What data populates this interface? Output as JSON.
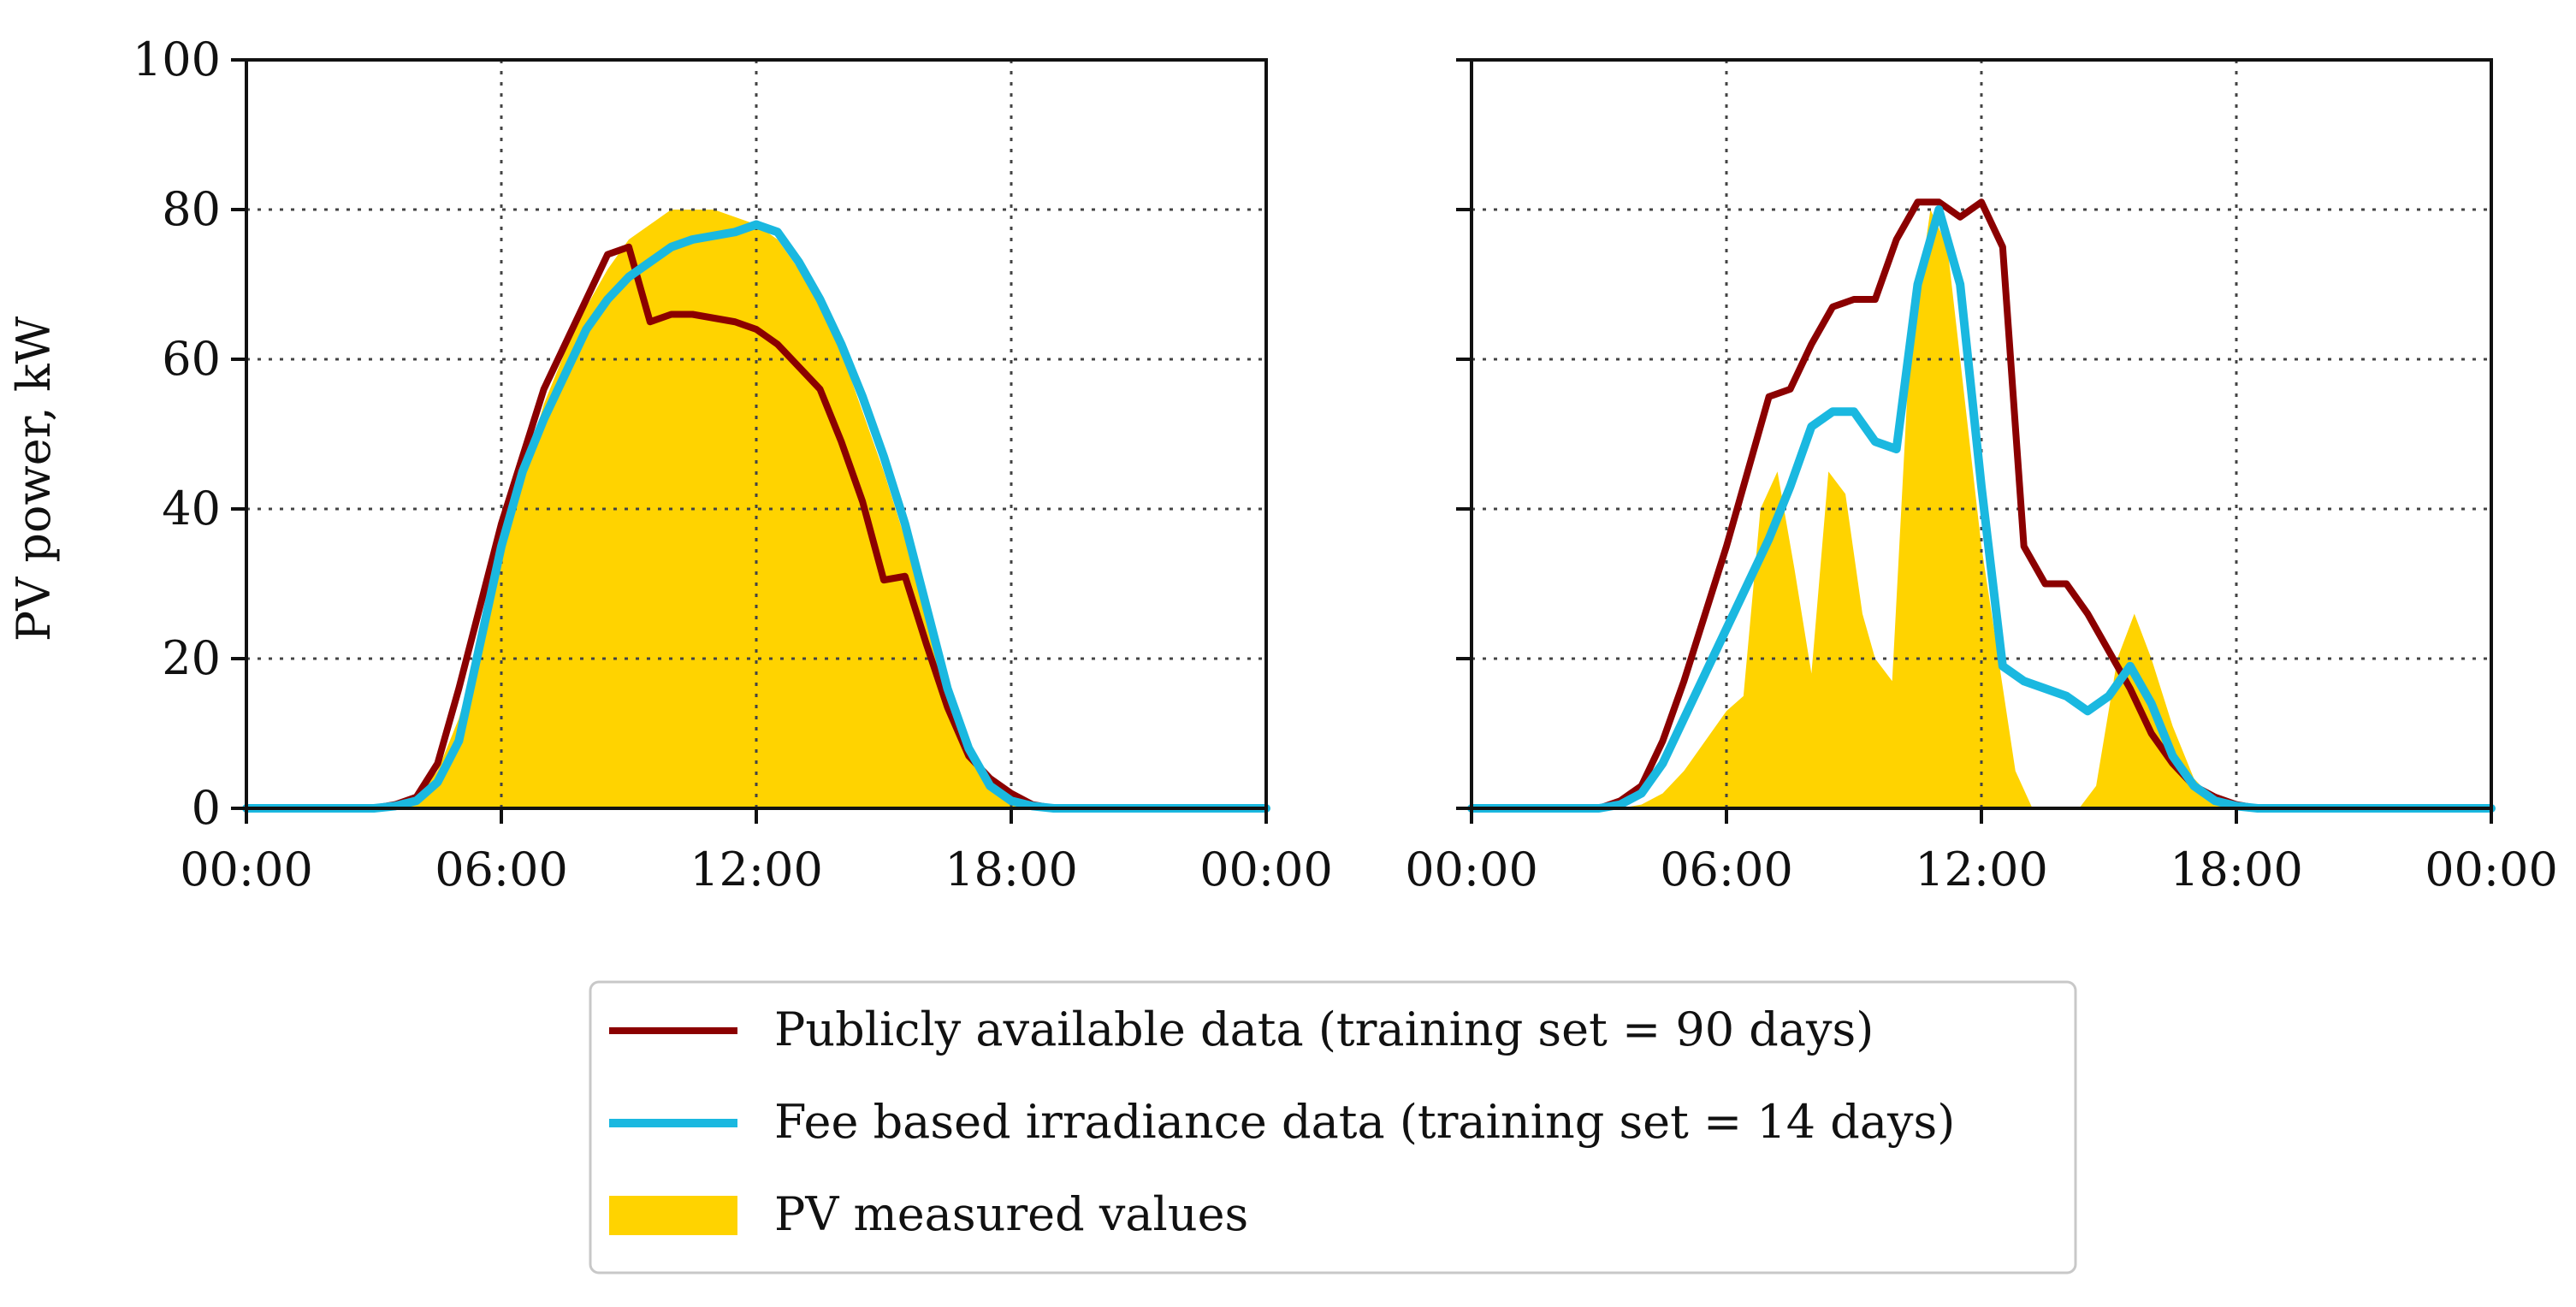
{
  "chart_data": [
    {
      "type": "area",
      "ylabel": "PV power, kW",
      "ylim": [
        0,
        100
      ],
      "yticks": [
        "0",
        "20",
        "40",
        "60",
        "80",
        "100"
      ],
      "xlim": [
        0,
        24
      ],
      "xticks": [
        "00:00",
        "06:00",
        "12:00",
        "18:00",
        "00:00"
      ],
      "grid": true,
      "series": [
        {
          "name": "Publicly available data (training set = 90 days)",
          "kind": "line",
          "color": "#8b0000",
          "points": [
            [
              0,
              0
            ],
            [
              3,
              0
            ],
            [
              3.5,
              0.5
            ],
            [
              4,
              1.5
            ],
            [
              4.5,
              6
            ],
            [
              5,
              16
            ],
            [
              5.5,
              27
            ],
            [
              6,
              38
            ],
            [
              6.5,
              47
            ],
            [
              7,
              56
            ],
            [
              7.5,
              62
            ],
            [
              8,
              68
            ],
            [
              8.5,
              74
            ],
            [
              9,
              75
            ],
            [
              9.5,
              65
            ],
            [
              10,
              66
            ],
            [
              10.5,
              66
            ],
            [
              11,
              65.5
            ],
            [
              11.5,
              65
            ],
            [
              12,
              64
            ],
            [
              12.5,
              62
            ],
            [
              13,
              59
            ],
            [
              13.5,
              56
            ],
            [
              14,
              49
            ],
            [
              14.5,
              41
            ],
            [
              15,
              30.5
            ],
            [
              15.5,
              31
            ],
            [
              16,
              22
            ],
            [
              16.5,
              13.5
            ],
            [
              17,
              7
            ],
            [
              17.5,
              4
            ],
            [
              18,
              2
            ],
            [
              18.5,
              0.5
            ],
            [
              19,
              0
            ],
            [
              24,
              0
            ]
          ]
        },
        {
          "name": "Fee based irradiance data (training set = 14 days)",
          "kind": "line",
          "color": "#1ab8e0",
          "points": [
            [
              0,
              0
            ],
            [
              3,
              0
            ],
            [
              3.5,
              0.3
            ],
            [
              4,
              1
            ],
            [
              4.5,
              3.5
            ],
            [
              5,
              9
            ],
            [
              5.5,
              22
            ],
            [
              6,
              35
            ],
            [
              6.5,
              45
            ],
            [
              7,
              52
            ],
            [
              7.5,
              58
            ],
            [
              8,
              64
            ],
            [
              8.5,
              68
            ],
            [
              9,
              71
            ],
            [
              9.5,
              73
            ],
            [
              10,
              75
            ],
            [
              10.5,
              76
            ],
            [
              11,
              76.5
            ],
            [
              11.5,
              77
            ],
            [
              12,
              78
            ],
            [
              12.5,
              77
            ],
            [
              13,
              73
            ],
            [
              13.5,
              68
            ],
            [
              14,
              62
            ],
            [
              14.5,
              55
            ],
            [
              15,
              47
            ],
            [
              15.5,
              38
            ],
            [
              16,
              27
            ],
            [
              16.5,
              16
            ],
            [
              17,
              8
            ],
            [
              17.5,
              3
            ],
            [
              18,
              1
            ],
            [
              18.5,
              0.3
            ],
            [
              19,
              0
            ],
            [
              24,
              0
            ]
          ]
        },
        {
          "name": "PV measured values",
          "kind": "area",
          "color": "#ffd300",
          "points": [
            [
              0,
              0
            ],
            [
              3,
              0
            ],
            [
              3.5,
              0.5
            ],
            [
              4,
              1.5
            ],
            [
              4.5,
              5
            ],
            [
              5,
              12
            ],
            [
              5.5,
              22
            ],
            [
              6,
              33
            ],
            [
              6.5,
              44
            ],
            [
              7,
              54
            ],
            [
              7.5,
              61
            ],
            [
              8,
              67
            ],
            [
              8.5,
              72
            ],
            [
              9,
              76
            ],
            [
              9.5,
              78
            ],
            [
              10,
              80
            ],
            [
              10.5,
              80
            ],
            [
              11,
              80
            ],
            [
              11.5,
              79
            ],
            [
              12,
              78
            ],
            [
              12.5,
              76
            ],
            [
              13,
              72
            ],
            [
              13.5,
              67
            ],
            [
              14,
              61
            ],
            [
              14.5,
              53
            ],
            [
              15,
              45
            ],
            [
              15.5,
              36
            ],
            [
              16,
              26
            ],
            [
              16.5,
              16
            ],
            [
              17,
              9
            ],
            [
              17.5,
              4
            ],
            [
              18,
              1.5
            ],
            [
              18.5,
              0.5
            ],
            [
              19,
              0
            ],
            [
              24,
              0
            ]
          ]
        }
      ]
    },
    {
      "type": "area",
      "ylim": [
        0,
        100
      ],
      "xlim": [
        0,
        24
      ],
      "xticks": [
        "00:00",
        "06:00",
        "12:00",
        "18:00",
        "00:00"
      ],
      "grid": true,
      "series": [
        {
          "name": "Publicly available data (training set = 90 days)",
          "kind": "line",
          "color": "#8b0000",
          "points": [
            [
              0,
              0
            ],
            [
              3,
              0
            ],
            [
              3.5,
              1
            ],
            [
              4,
              3
            ],
            [
              4.5,
              9
            ],
            [
              5,
              17
            ],
            [
              5.5,
              26
            ],
            [
              6,
              35
            ],
            [
              6.5,
              45
            ],
            [
              7,
              55
            ],
            [
              7.5,
              56
            ],
            [
              8,
              62
            ],
            [
              8.5,
              67
            ],
            [
              9,
              68
            ],
            [
              9.5,
              68
            ],
            [
              10,
              76
            ],
            [
              10.5,
              81
            ],
            [
              11,
              81
            ],
            [
              11.5,
              79
            ],
            [
              12,
              81
            ],
            [
              12.5,
              75
            ],
            [
              13,
              35
            ],
            [
              13.5,
              30
            ],
            [
              14,
              30
            ],
            [
              14.5,
              26
            ],
            [
              15,
              21
            ],
            [
              15.5,
              16
            ],
            [
              16,
              10
            ],
            [
              16.5,
              6
            ],
            [
              17,
              3
            ],
            [
              17.5,
              1.5
            ],
            [
              18,
              0.5
            ],
            [
              18.5,
              0
            ],
            [
              24,
              0
            ]
          ]
        },
        {
          "name": "Fee based irradiance data (training set = 14 days)",
          "kind": "line",
          "color": "#1ab8e0",
          "points": [
            [
              0,
              0
            ],
            [
              3,
              0
            ],
            [
              3.5,
              0.5
            ],
            [
              4,
              2
            ],
            [
              4.5,
              6
            ],
            [
              5,
              12
            ],
            [
              5.5,
              18
            ],
            [
              6,
              24
            ],
            [
              6.5,
              30
            ],
            [
              7,
              36
            ],
            [
              7.5,
              43
            ],
            [
              8,
              51
            ],
            [
              8.5,
              53
            ],
            [
              9,
              53
            ],
            [
              9.5,
              49
            ],
            [
              10,
              48
            ],
            [
              10.5,
              70
            ],
            [
              11,
              80
            ],
            [
              11.5,
              70
            ],
            [
              12,
              43
            ],
            [
              12.5,
              19
            ],
            [
              13,
              17
            ],
            [
              13.5,
              16
            ],
            [
              14,
              15
            ],
            [
              14.5,
              13
            ],
            [
              15,
              15
            ],
            [
              15.5,
              19
            ],
            [
              16,
              14
            ],
            [
              16.5,
              7
            ],
            [
              17,
              3
            ],
            [
              17.5,
              1
            ],
            [
              18,
              0.3
            ],
            [
              18.5,
              0
            ],
            [
              24,
              0
            ]
          ]
        },
        {
          "name": "PV measured values",
          "kind": "area",
          "color": "#ffd300",
          "points": [
            [
              0,
              0
            ],
            [
              3.5,
              0
            ],
            [
              4,
              0.5
            ],
            [
              4.5,
              2
            ],
            [
              5,
              5
            ],
            [
              5.5,
              9
            ],
            [
              6,
              13
            ],
            [
              6.4,
              15
            ],
            [
              6.8,
              40
            ],
            [
              7.2,
              45
            ],
            [
              7.6,
              32
            ],
            [
              8,
              18
            ],
            [
              8.4,
              45
            ],
            [
              8.8,
              42
            ],
            [
              9.2,
              26
            ],
            [
              9.5,
              20
            ],
            [
              9.9,
              17
            ],
            [
              10.3,
              60
            ],
            [
              10.8,
              80
            ],
            [
              11.2,
              75
            ],
            [
              11.6,
              55
            ],
            [
              12,
              35
            ],
            [
              12.4,
              20
            ],
            [
              12.8,
              5
            ],
            [
              13.2,
              0
            ],
            [
              14.3,
              0
            ],
            [
              14.7,
              3
            ],
            [
              15.2,
              20
            ],
            [
              15.6,
              26
            ],
            [
              16,
              20
            ],
            [
              16.5,
              11
            ],
            [
              17,
              4
            ],
            [
              17.5,
              1
            ],
            [
              18,
              0
            ],
            [
              24,
              0
            ]
          ]
        }
      ]
    }
  ],
  "legend": {
    "entries": [
      "Publicly available data (training set = 90 days)",
      "Fee based irradiance data (training set = 14 days)",
      "PV measured values"
    ]
  }
}
